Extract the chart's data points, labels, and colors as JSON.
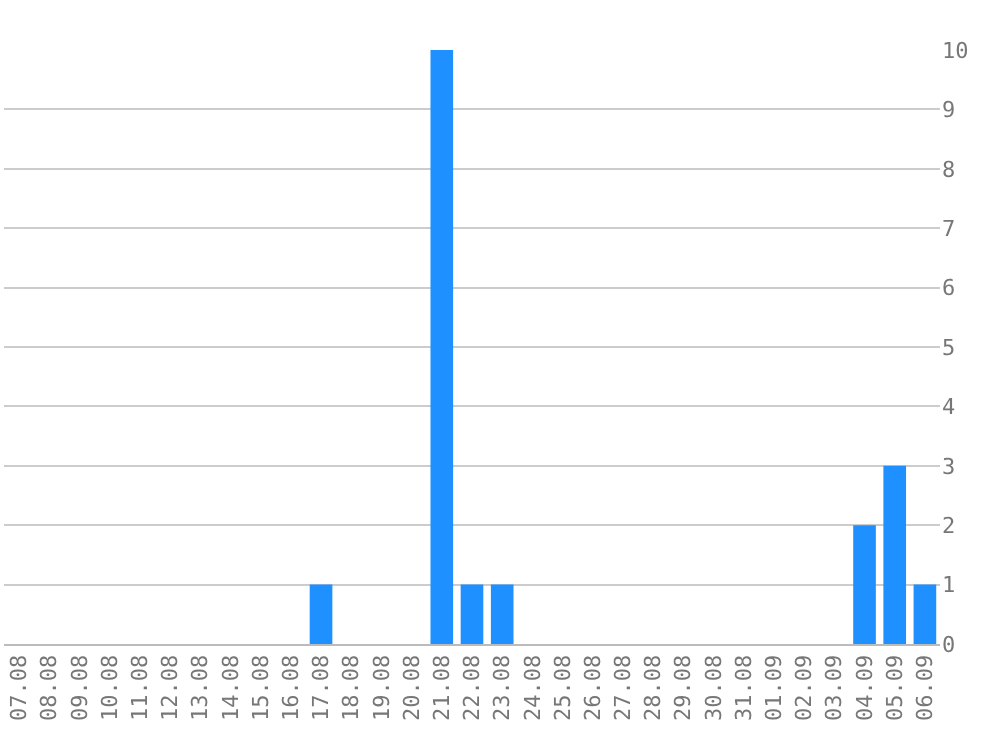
{
  "chart_data": {
    "type": "bar",
    "categories": [
      "07.08",
      "08.08",
      "09.08",
      "10.08",
      "11.08",
      "12.08",
      "13.08",
      "14.08",
      "15.08",
      "16.08",
      "17.08",
      "18.08",
      "19.08",
      "20.08",
      "21.08",
      "22.08",
      "23.08",
      "24.08",
      "25.08",
      "26.08",
      "27.08",
      "28.08",
      "29.08",
      "30.08",
      "31.08",
      "01.09",
      "02.09",
      "03.09",
      "04.09",
      "05.09",
      "06.09"
    ],
    "values": [
      0,
      0,
      0,
      0,
      0,
      0,
      0,
      0,
      0,
      0,
      1,
      0,
      0,
      0,
      10,
      1,
      1,
      0,
      0,
      0,
      0,
      0,
      0,
      0,
      0,
      0,
      0,
      0,
      2,
      3,
      1
    ],
    "color": "#1e90ff",
    "ylim": [
      0,
      10
    ],
    "yticks": [
      0,
      1,
      2,
      3,
      4,
      5,
      6,
      7,
      8,
      9,
      10
    ],
    "grid": "y",
    "legend": false
  }
}
